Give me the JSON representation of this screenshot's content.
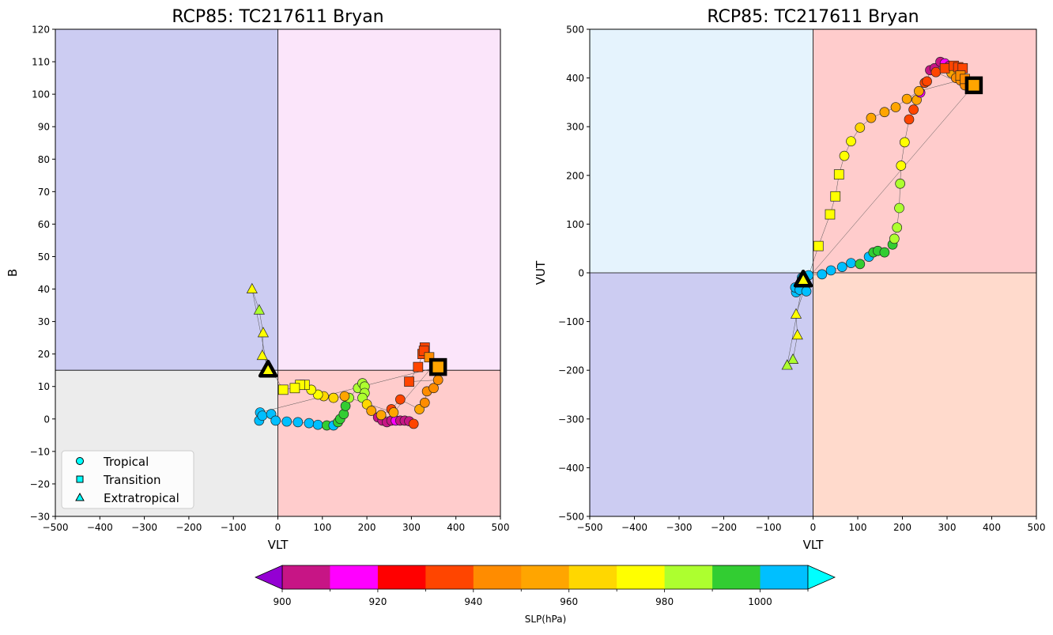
{
  "figure": {
    "colorbar": {
      "label": "SLP(hPa)",
      "bins": [
        {
          "from": 900,
          "to": 910,
          "color": "#c71585"
        },
        {
          "from": 910,
          "to": 920,
          "color": "#ff00ff"
        },
        {
          "from": 920,
          "to": 930,
          "color": "#ff0000"
        },
        {
          "from": 930,
          "to": 940,
          "color": "#ff4500"
        },
        {
          "from": 940,
          "to": 950,
          "color": "#ff8c00"
        },
        {
          "from": 950,
          "to": 960,
          "color": "#ffa500"
        },
        {
          "from": 960,
          "to": 970,
          "color": "#ffd700"
        },
        {
          "from": 970,
          "to": 980,
          "color": "#ffff00"
        },
        {
          "from": 980,
          "to": 990,
          "color": "#adff2f"
        },
        {
          "from": 990,
          "to": 1000,
          "color": "#32cd32"
        },
        {
          "from": 1000,
          "to": 1010,
          "color": "#00bfff"
        }
      ],
      "under_color": "#9400d3",
      "over_color": "#00ffff",
      "ticks": [
        "900",
        "920",
        "940",
        "960",
        "980",
        "1000"
      ]
    },
    "legend": {
      "placement": "lower-left",
      "entries": [
        {
          "label": "Tropical",
          "marker": "circle"
        },
        {
          "label": "Transition",
          "marker": "square"
        },
        {
          "label": "Extratropical",
          "marker": "triangle"
        }
      ]
    }
  },
  "chart_data": [
    {
      "type": "scatter",
      "title": "RCP85: TC217611 Bryan",
      "xlabel": "VLT",
      "ylabel": "B",
      "xlim": [
        -500,
        500
      ],
      "ylim": [
        -30,
        120
      ],
      "xticks": [
        -500,
        -400,
        -300,
        -200,
        -100,
        0,
        100,
        200,
        300,
        400,
        500
      ],
      "yticks": [
        -30,
        -20,
        -10,
        0,
        10,
        20,
        30,
        40,
        50,
        60,
        70,
        80,
        90,
        100,
        110,
        120
      ],
      "divider": {
        "x": 0,
        "y": 15
      },
      "quadrant_colors": {
        "upper_left": "#ccccf2",
        "upper_right": "#fbe5fa",
        "lower_left": "#ececec",
        "lower_right": "#ffcccc"
      },
      "start": {
        "x": 360,
        "y": 16,
        "marker": "square"
      },
      "end": {
        "x": -22,
        "y": 15,
        "marker": "triangle"
      },
      "points": [
        {
          "x": -40,
          "y": 2,
          "p": 1005,
          "m": "c"
        },
        {
          "x": -42,
          "y": -0.5,
          "p": 1008,
          "m": "c"
        },
        {
          "x": -35,
          "y": 1,
          "p": 1004,
          "m": "c"
        },
        {
          "x": -15,
          "y": 1.5,
          "p": 1004,
          "m": "c"
        },
        {
          "x": -5,
          "y": -0.5,
          "p": 1004,
          "m": "c"
        },
        {
          "x": 20,
          "y": -0.8,
          "p": 1004,
          "m": "c"
        },
        {
          "x": 45,
          "y": -1,
          "p": 1003,
          "m": "c"
        },
        {
          "x": 70,
          "y": -1.3,
          "p": 1002,
          "m": "c"
        },
        {
          "x": 90,
          "y": -1.8,
          "p": 1002,
          "m": "c"
        },
        {
          "x": 110,
          "y": -2,
          "p": 995,
          "m": "c"
        },
        {
          "x": 125,
          "y": -2,
          "p": 1002,
          "m": "c"
        },
        {
          "x": 135,
          "y": -1,
          "p": 997,
          "m": "c"
        },
        {
          "x": 140,
          "y": 0,
          "p": 996,
          "m": "c"
        },
        {
          "x": 148,
          "y": 1.5,
          "p": 995,
          "m": "c"
        },
        {
          "x": 152,
          "y": 4,
          "p": 994,
          "m": "c"
        },
        {
          "x": 160,
          "y": 6.5,
          "p": 988,
          "m": "c"
        },
        {
          "x": 180,
          "y": 9.5,
          "p": 985,
          "m": "c"
        },
        {
          "x": 190,
          "y": 11,
          "p": 983,
          "m": "c"
        },
        {
          "x": 195,
          "y": 10,
          "p": 982,
          "m": "c"
        },
        {
          "x": 195,
          "y": 8,
          "p": 982,
          "m": "c"
        },
        {
          "x": 190,
          "y": 6.5,
          "p": 982,
          "m": "c"
        },
        {
          "x": 200,
          "y": 4.5,
          "p": 960,
          "m": "c"
        },
        {
          "x": 210,
          "y": 2.5,
          "p": 955,
          "m": "c"
        },
        {
          "x": 225,
          "y": 0.5,
          "p": 905,
          "m": "c"
        },
        {
          "x": 235,
          "y": -0.5,
          "p": 903,
          "m": "c"
        },
        {
          "x": 245,
          "y": -1,
          "p": 902,
          "m": "c"
        },
        {
          "x": 255,
          "y": -0.5,
          "p": 905,
          "m": "c"
        },
        {
          "x": 265,
          "y": -0.5,
          "p": 910,
          "m": "c"
        },
        {
          "x": 275,
          "y": -0.5,
          "p": 905,
          "m": "c"
        },
        {
          "x": 285,
          "y": -0.5,
          "p": 905,
          "m": "c"
        },
        {
          "x": 295,
          "y": -0.7,
          "p": 908,
          "m": "c"
        },
        {
          "x": 305,
          "y": -1.5,
          "p": 935,
          "m": "c"
        },
        {
          "x": 232,
          "y": 1.2,
          "p": 950,
          "m": "c"
        },
        {
          "x": 255,
          "y": 3,
          "p": 935,
          "m": "c"
        },
        {
          "x": 275,
          "y": 6,
          "p": 935,
          "m": "c"
        },
        {
          "x": 318,
          "y": 3,
          "p": 950,
          "m": "c"
        },
        {
          "x": 330,
          "y": 5,
          "p": 945,
          "m": "c"
        },
        {
          "x": 335,
          "y": 8.5,
          "p": 945,
          "m": "c"
        },
        {
          "x": 350,
          "y": 9.5,
          "p": 945,
          "m": "c"
        },
        {
          "x": 360,
          "y": 12,
          "p": 945,
          "m": "c"
        },
        {
          "x": 295,
          "y": 11.5,
          "p": 935,
          "m": "s"
        },
        {
          "x": 315,
          "y": 16,
          "p": 935,
          "m": "s"
        },
        {
          "x": 325,
          "y": 20,
          "p": 935,
          "m": "s"
        },
        {
          "x": 330,
          "y": 22,
          "p": 935,
          "m": "s"
        },
        {
          "x": 328,
          "y": 21,
          "p": 935,
          "m": "s"
        },
        {
          "x": 340,
          "y": 19,
          "p": 945,
          "m": "s"
        },
        {
          "x": 353,
          "y": 17,
          "p": 945,
          "m": "s"
        },
        {
          "x": 260,
          "y": 2,
          "p": 955,
          "m": "c"
        },
        {
          "x": 150,
          "y": 7,
          "p": 955,
          "m": "c"
        },
        {
          "x": 125,
          "y": 6.5,
          "p": 965,
          "m": "c"
        },
        {
          "x": 103,
          "y": 7,
          "p": 965,
          "m": "c"
        },
        {
          "x": 90,
          "y": 7.5,
          "p": 975,
          "m": "c"
        },
        {
          "x": 75,
          "y": 9,
          "p": 975,
          "m": "c"
        },
        {
          "x": 60,
          "y": 10.5,
          "p": 975,
          "m": "s"
        },
        {
          "x": 50,
          "y": 10.5,
          "p": 975,
          "m": "s"
        },
        {
          "x": 38,
          "y": 9.5,
          "p": 975,
          "m": "s"
        },
        {
          "x": 12,
          "y": 9,
          "p": 975,
          "m": "s"
        },
        {
          "x": -35,
          "y": 19.5,
          "p": 975,
          "m": "t"
        },
        {
          "x": -33,
          "y": 26.5,
          "p": 975,
          "m": "t"
        },
        {
          "x": -42,
          "y": 33.5,
          "p": 985,
          "m": "t"
        },
        {
          "x": -58,
          "y": 40,
          "p": 975,
          "m": "t"
        }
      ]
    },
    {
      "type": "scatter",
      "title": "RCP85: TC217611 Bryan",
      "xlabel": "VLT",
      "ylabel": "VUT",
      "xlim": [
        -500,
        500
      ],
      "ylim": [
        -500,
        500
      ],
      "xticks": [
        -500,
        -400,
        -300,
        -200,
        -100,
        0,
        100,
        200,
        300,
        400,
        500
      ],
      "yticks": [
        -500,
        -400,
        -300,
        -200,
        -100,
        0,
        100,
        200,
        300,
        400,
        500
      ],
      "divider": {
        "x": 0,
        "y": 0
      },
      "quadrant_colors": {
        "upper_left": "#e5f3fd",
        "upper_right": "#ffcccc",
        "lower_left": "#ccccf2",
        "lower_right": "#ffdacc"
      },
      "start": {
        "x": 360,
        "y": 385,
        "marker": "square"
      },
      "end": {
        "x": -22,
        "y": -15,
        "marker": "triangle"
      },
      "points": [
        {
          "x": -38,
          "y": -40,
          "p": 1008,
          "m": "c"
        },
        {
          "x": -40,
          "y": -30,
          "p": 1005,
          "m": "c"
        },
        {
          "x": -30,
          "y": -35,
          "p": 1004,
          "m": "c"
        },
        {
          "x": -15,
          "y": -38,
          "p": 1004,
          "m": "c"
        },
        {
          "x": -25,
          "y": -10,
          "p": 1004,
          "m": "c"
        },
        {
          "x": -10,
          "y": -5,
          "p": 1004,
          "m": "c"
        },
        {
          "x": 20,
          "y": -3,
          "p": 1003,
          "m": "c"
        },
        {
          "x": 40,
          "y": 5,
          "p": 1003,
          "m": "c"
        },
        {
          "x": 65,
          "y": 12,
          "p": 1002,
          "m": "c"
        },
        {
          "x": 85,
          "y": 20,
          "p": 1002,
          "m": "c"
        },
        {
          "x": 105,
          "y": 18,
          "p": 995,
          "m": "c"
        },
        {
          "x": 125,
          "y": 33,
          "p": 1002,
          "m": "c"
        },
        {
          "x": 135,
          "y": 42,
          "p": 996,
          "m": "c"
        },
        {
          "x": 145,
          "y": 45,
          "p": 995,
          "m": "c"
        },
        {
          "x": 160,
          "y": 42,
          "p": 994,
          "m": "c"
        },
        {
          "x": 178,
          "y": 58,
          "p": 995,
          "m": "c"
        },
        {
          "x": 182,
          "y": 70,
          "p": 985,
          "m": "c"
        },
        {
          "x": 188,
          "y": 93,
          "p": 985,
          "m": "c"
        },
        {
          "x": 193,
          "y": 133,
          "p": 983,
          "m": "c"
        },
        {
          "x": 195,
          "y": 183,
          "p": 982,
          "m": "c"
        },
        {
          "x": 197,
          "y": 220,
          "p": 975,
          "m": "c"
        },
        {
          "x": 205,
          "y": 268,
          "p": 975,
          "m": "c"
        },
        {
          "x": 215,
          "y": 315,
          "p": 935,
          "m": "c"
        },
        {
          "x": 225,
          "y": 335,
          "p": 935,
          "m": "c"
        },
        {
          "x": 232,
          "y": 355,
          "p": 955,
          "m": "c"
        },
        {
          "x": 240,
          "y": 370,
          "p": 915,
          "m": "c"
        },
        {
          "x": 250,
          "y": 390,
          "p": 935,
          "m": "c"
        },
        {
          "x": 255,
          "y": 393,
          "p": 930,
          "m": "c"
        },
        {
          "x": 262,
          "y": 416,
          "p": 905,
          "m": "c"
        },
        {
          "x": 272,
          "y": 420,
          "p": 905,
          "m": "c"
        },
        {
          "x": 285,
          "y": 433,
          "p": 905,
          "m": "c"
        },
        {
          "x": 295,
          "y": 430,
          "p": 910,
          "m": "c"
        },
        {
          "x": 305,
          "y": 425,
          "p": 905,
          "m": "c"
        },
        {
          "x": 310,
          "y": 410,
          "p": 950,
          "m": "c"
        },
        {
          "x": 320,
          "y": 400,
          "p": 945,
          "m": "c"
        },
        {
          "x": 330,
          "y": 395,
          "p": 945,
          "m": "c"
        },
        {
          "x": 340,
          "y": 385,
          "p": 945,
          "m": "c"
        },
        {
          "x": 275,
          "y": 412,
          "p": 935,
          "m": "c"
        },
        {
          "x": 295,
          "y": 420,
          "p": 935,
          "m": "s"
        },
        {
          "x": 315,
          "y": 425,
          "p": 935,
          "m": "s"
        },
        {
          "x": 325,
          "y": 422,
          "p": 935,
          "m": "s"
        },
        {
          "x": 335,
          "y": 420,
          "p": 935,
          "m": "s"
        },
        {
          "x": 330,
          "y": 405,
          "p": 945,
          "m": "s"
        },
        {
          "x": 340,
          "y": 398,
          "p": 945,
          "m": "s"
        },
        {
          "x": 237,
          "y": 373,
          "p": 955,
          "m": "c"
        },
        {
          "x": 210,
          "y": 357,
          "p": 955,
          "m": "c"
        },
        {
          "x": 185,
          "y": 340,
          "p": 955,
          "m": "c"
        },
        {
          "x": 160,
          "y": 330,
          "p": 955,
          "m": "c"
        },
        {
          "x": 130,
          "y": 318,
          "p": 955,
          "m": "c"
        },
        {
          "x": 105,
          "y": 298,
          "p": 965,
          "m": "c"
        },
        {
          "x": 85,
          "y": 270,
          "p": 975,
          "m": "c"
        },
        {
          "x": 70,
          "y": 240,
          "p": 975,
          "m": "c"
        },
        {
          "x": 58,
          "y": 202,
          "p": 975,
          "m": "s"
        },
        {
          "x": 50,
          "y": 157,
          "p": 975,
          "m": "s"
        },
        {
          "x": 38,
          "y": 120,
          "p": 975,
          "m": "s"
        },
        {
          "x": 12,
          "y": 55,
          "p": 975,
          "m": "s"
        },
        {
          "x": -38,
          "y": -85,
          "p": 975,
          "m": "t"
        },
        {
          "x": -35,
          "y": -128,
          "p": 975,
          "m": "t"
        },
        {
          "x": -45,
          "y": -178,
          "p": 985,
          "m": "t"
        },
        {
          "x": -58,
          "y": -190,
          "p": 985,
          "m": "t"
        }
      ]
    }
  ]
}
